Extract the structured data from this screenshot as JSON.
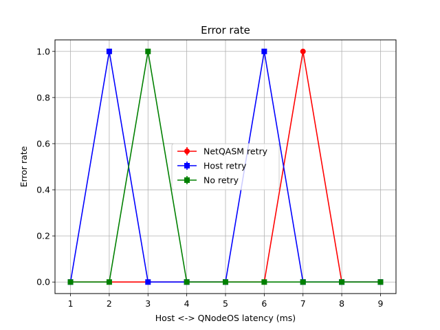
{
  "chart_data": {
    "type": "line",
    "title": "Error rate",
    "xlabel": "Host <-> QNodeOS latency (ms)",
    "ylabel": "Error rate",
    "xlim": [
      0.6,
      9.4
    ],
    "ylim": [
      -0.05,
      1.05
    ],
    "x": [
      1,
      2,
      3,
      4,
      5,
      6,
      7,
      8,
      9
    ],
    "xticks": [
      1,
      2,
      3,
      4,
      5,
      6,
      7,
      8,
      9
    ],
    "yticks": [
      0.0,
      0.2,
      0.4,
      0.6,
      0.8,
      1.0
    ],
    "ytick_labels": [
      "0.0",
      "0.2",
      "0.4",
      "0.6",
      "0.8",
      "1.0"
    ],
    "grid": true,
    "legend_position": "center",
    "series": [
      {
        "name": "NetQASM retry",
        "color": "#ff0000",
        "marker": "circle",
        "values": [
          0,
          0,
          0,
          0,
          0,
          0,
          1,
          0,
          0
        ]
      },
      {
        "name": "Host retry",
        "color": "#0000ff",
        "marker": "square",
        "values": [
          0,
          1,
          0,
          0,
          0,
          1,
          0,
          0,
          0
        ]
      },
      {
        "name": "No retry",
        "color": "#008000",
        "marker": "square",
        "values": [
          0,
          0,
          1,
          0,
          0,
          0,
          0,
          0,
          0
        ]
      }
    ]
  }
}
